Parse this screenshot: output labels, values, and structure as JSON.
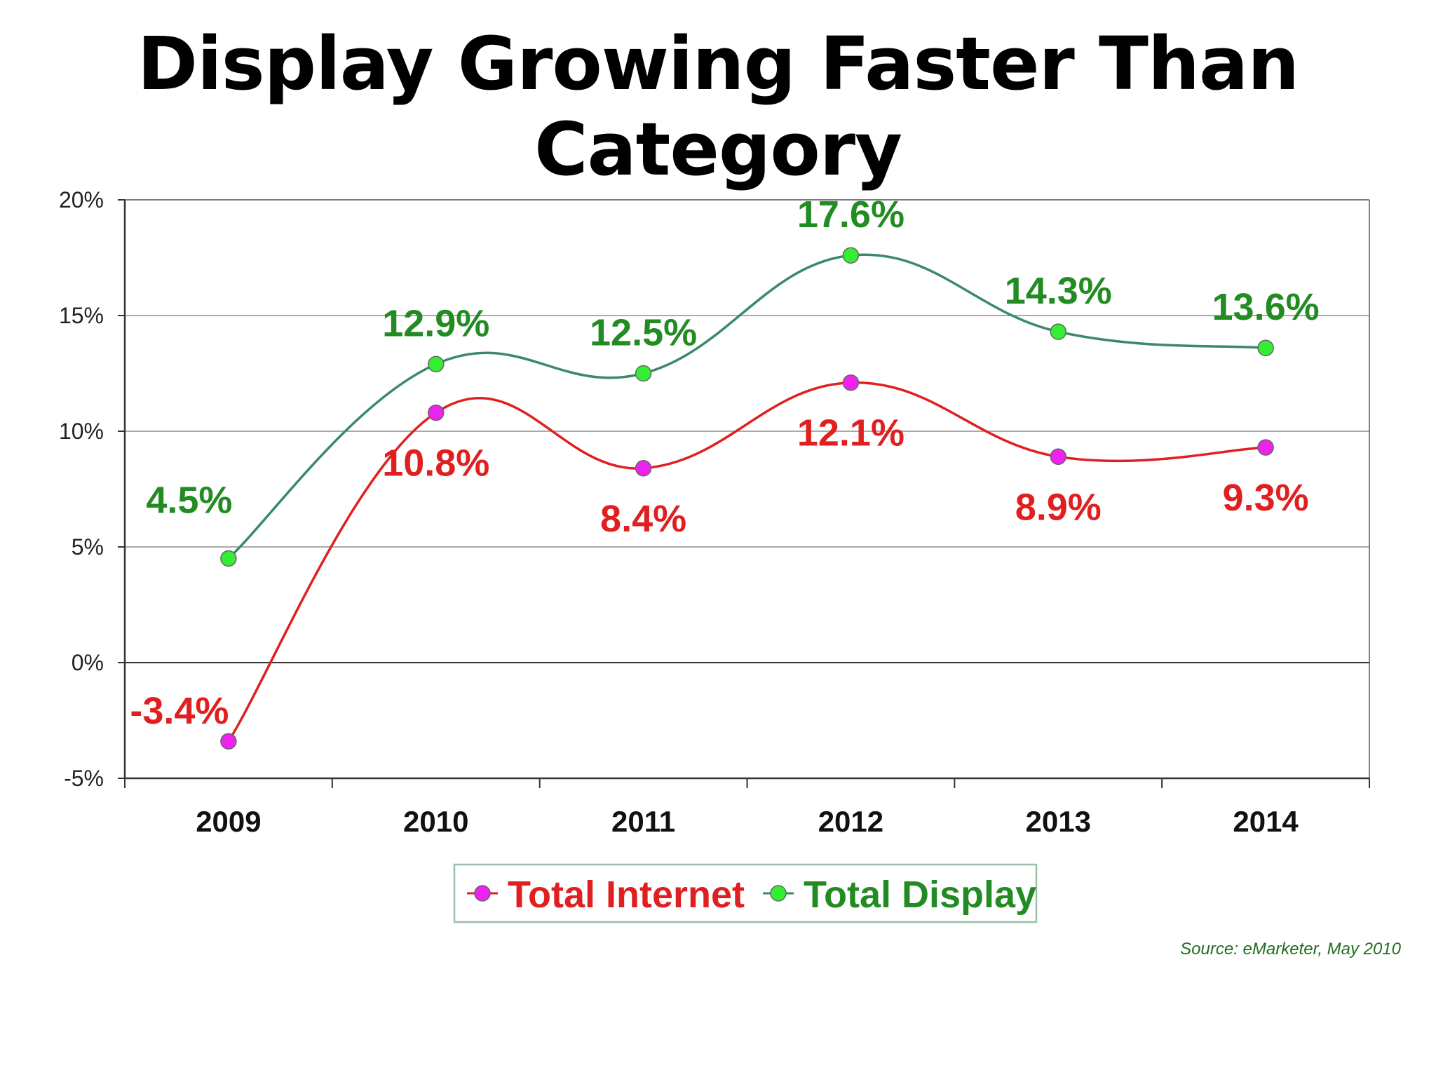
{
  "slide": {
    "title": "Display Growing Faster Than Category",
    "source": "Source: eMarketer, May 2010"
  },
  "chart_data": {
    "type": "line",
    "title": "",
    "xlabel": "",
    "ylabel": "",
    "categories": [
      "2009",
      "2010",
      "2011",
      "2012",
      "2013",
      "2014"
    ],
    "ylim": [
      -5,
      20
    ],
    "yticks": [
      -5,
      0,
      5,
      10,
      15,
      20
    ],
    "ytick_labels": [
      "-5%",
      "0%",
      "5%",
      "10%",
      "15%",
      "20%"
    ],
    "grid": true,
    "smooth": true,
    "legend_position": "bottom",
    "series": [
      {
        "name": "Total Internet",
        "values": [
          -3.4,
          10.8,
          8.4,
          12.1,
          8.9,
          9.3
        ],
        "labels": [
          "-3.4%",
          "10.8%",
          "8.4%",
          "12.1%",
          "8.9%",
          "9.3%"
        ],
        "line_color": "#e02020",
        "marker_color": "#ee22ee",
        "label_color": "#e02020",
        "label_side": [
          "left",
          "below",
          "below",
          "below",
          "below",
          "below"
        ]
      },
      {
        "name": "Total Display",
        "values": [
          4.5,
          12.9,
          12.5,
          17.6,
          14.3,
          13.6
        ],
        "labels": [
          "4.5%",
          "12.9%",
          "12.5%",
          "17.6%",
          "14.3%",
          "13.6%"
        ],
        "line_color": "#3a8a6a",
        "marker_color": "#33ee33",
        "label_color": "#228b22",
        "label_side": [
          "above-left",
          "above",
          "above",
          "above",
          "above",
          "above"
        ]
      }
    ]
  }
}
